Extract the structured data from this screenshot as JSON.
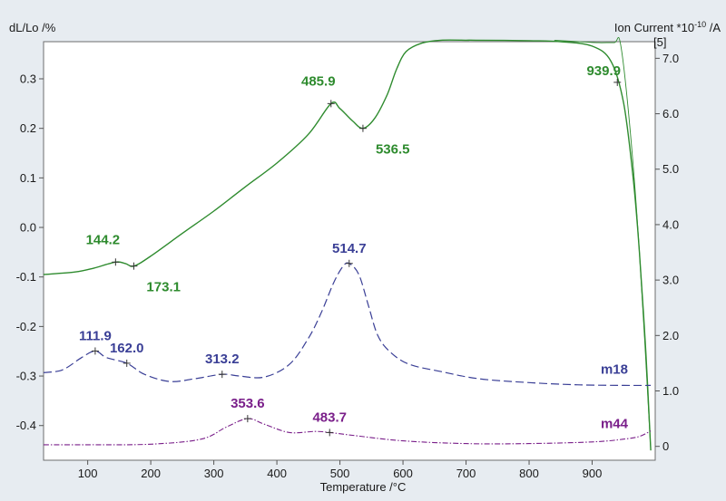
{
  "chart_data": {
    "type": "line",
    "xlabel": "Temperature /°C",
    "ylabel_left": "dL/Lo /%",
    "ylabel_right": "Ion Current *10",
    "ylabel_right_exp": "-10",
    "ylabel_right_unit": " /A",
    "right_axis_marker": "[5]",
    "xlim": [
      30,
      1000
    ],
    "ylim_left": [
      -0.47,
      0.375
    ],
    "ylim_right": [
      -0.25,
      7.3
    ],
    "x_ticks": [
      100,
      200,
      300,
      400,
      500,
      600,
      700,
      800,
      900
    ],
    "x_tick_labels": [
      "100",
      "200",
      "300",
      "400",
      "500",
      "600",
      "700",
      "800",
      "900"
    ],
    "y_left_ticks": [
      0.3,
      0.2,
      0.1,
      0.0,
      -0.1,
      -0.2,
      -0.3,
      -0.4
    ],
    "y_left_tick_labels": [
      "0.3",
      "0.2",
      "0.1",
      "0.0",
      "-0.1",
      "-0.2",
      "-0.3",
      "-0.4"
    ],
    "y_right_ticks": [
      7,
      6,
      5,
      4,
      3,
      2,
      1,
      0
    ],
    "y_right_tick_labels": [
      "7.0",
      "6.0",
      "5.0",
      "4.0",
      "3.0",
      "2.0",
      "1.0",
      "0"
    ],
    "grid": false,
    "series": [
      {
        "name": "",
        "axis": "left",
        "color": "#2e8b2e",
        "style": "solid",
        "x": [
          30,
          80,
          110,
          144.2,
          160,
          173.1,
          200,
          250,
          300,
          350,
          400,
          450,
          485.9,
          500,
          520,
          536.5,
          555,
          575,
          590,
          605,
          630,
          660,
          700,
          715,
          800,
          850,
          900,
          930,
          950,
          965,
          975,
          985,
          993
        ],
        "y": [
          -0.095,
          -0.09,
          -0.082,
          -0.07,
          -0.073,
          -0.078,
          -0.058,
          -0.012,
          0.033,
          0.082,
          0.13,
          0.188,
          0.25,
          0.24,
          0.215,
          0.2,
          0.22,
          0.268,
          0.32,
          0.355,
          0.372,
          0.378,
          0.378,
          0.378,
          0.377,
          0.375,
          0.366,
          0.335,
          0.25,
          0.1,
          -0.05,
          -0.25,
          -0.45
        ]
      },
      {
        "name": "",
        "axis": "left",
        "color": "#2e8b2e",
        "style": "thin",
        "x": [
          840,
          880,
          910,
          935,
          945,
          960,
          975,
          993
        ],
        "y": [
          0.378,
          0.375,
          0.373,
          0.373,
          0.37,
          0.2,
          -0.05,
          -0.45
        ]
      },
      {
        "name": "m18",
        "axis": "right",
        "color": "#3a3f96",
        "style": "dashed",
        "x": [
          30,
          60,
          90,
          111.9,
          130,
          162.0,
          190,
          230,
          270,
          313.2,
          340,
          380,
          420,
          450,
          470,
          490,
          505,
          514.7,
          530,
          545,
          560,
          580,
          610,
          660,
          720,
          800,
          880,
          950,
          993
        ],
        "y": [
          1.33,
          1.38,
          1.6,
          1.72,
          1.6,
          1.5,
          1.3,
          1.17,
          1.22,
          1.3,
          1.27,
          1.25,
          1.48,
          1.95,
          2.4,
          2.95,
          3.25,
          3.3,
          3.1,
          2.55,
          2.0,
          1.7,
          1.48,
          1.35,
          1.22,
          1.15,
          1.11,
          1.1,
          1.1
        ]
      },
      {
        "name": "m44",
        "axis": "right",
        "color": "#7a1f8a",
        "style": "dashdot",
        "x": [
          30,
          100,
          200,
          280,
          320,
          353.6,
          380,
          420,
          460,
          483.7,
          520,
          600,
          700,
          800,
          900,
          950,
          975,
          993
        ],
        "y": [
          0.03,
          0.03,
          0.04,
          0.13,
          0.35,
          0.5,
          0.4,
          0.25,
          0.27,
          0.25,
          0.2,
          0.1,
          0.05,
          0.05,
          0.08,
          0.13,
          0.18,
          0.28
        ]
      }
    ],
    "annotations": [
      {
        "text": "144.2",
        "x": 144.2,
        "series": 0,
        "color": "#2e8b2e",
        "pos": "above"
      },
      {
        "text": "173.1",
        "x": 173.1,
        "series": 0,
        "color": "#2e8b2e",
        "pos": "below"
      },
      {
        "text": "485.9",
        "x": 485.9,
        "series": 0,
        "color": "#2e8b2e",
        "pos": "above"
      },
      {
        "text": "536.5",
        "x": 536.5,
        "series": 0,
        "color": "#2e8b2e",
        "pos": "below"
      },
      {
        "text": "939.9",
        "x": 939.9,
        "series": 0,
        "color": "#2e8b2e",
        "pos": "above-left"
      },
      {
        "text": "111.9",
        "x": 111.9,
        "series": 2,
        "color": "#3a3f96",
        "pos": "above"
      },
      {
        "text": "162.0",
        "x": 162.0,
        "series": 2,
        "color": "#3a3f96",
        "pos": "above"
      },
      {
        "text": "313.2",
        "x": 313.2,
        "series": 2,
        "color": "#3a3f96",
        "pos": "above"
      },
      {
        "text": "514.7",
        "x": 514.7,
        "series": 2,
        "color": "#3a3f96",
        "pos": "above"
      },
      {
        "text": "353.6",
        "x": 353.6,
        "series": 3,
        "color": "#7a1f8a",
        "pos": "above"
      },
      {
        "text": "483.7",
        "x": 483.7,
        "series": 3,
        "color": "#7a1f8a",
        "pos": "above"
      }
    ],
    "series_labels": [
      {
        "text": "m18",
        "series": 2,
        "color": "#3a3f96"
      },
      {
        "text": "m44",
        "series": 3,
        "color": "#7a1f8a"
      }
    ]
  }
}
